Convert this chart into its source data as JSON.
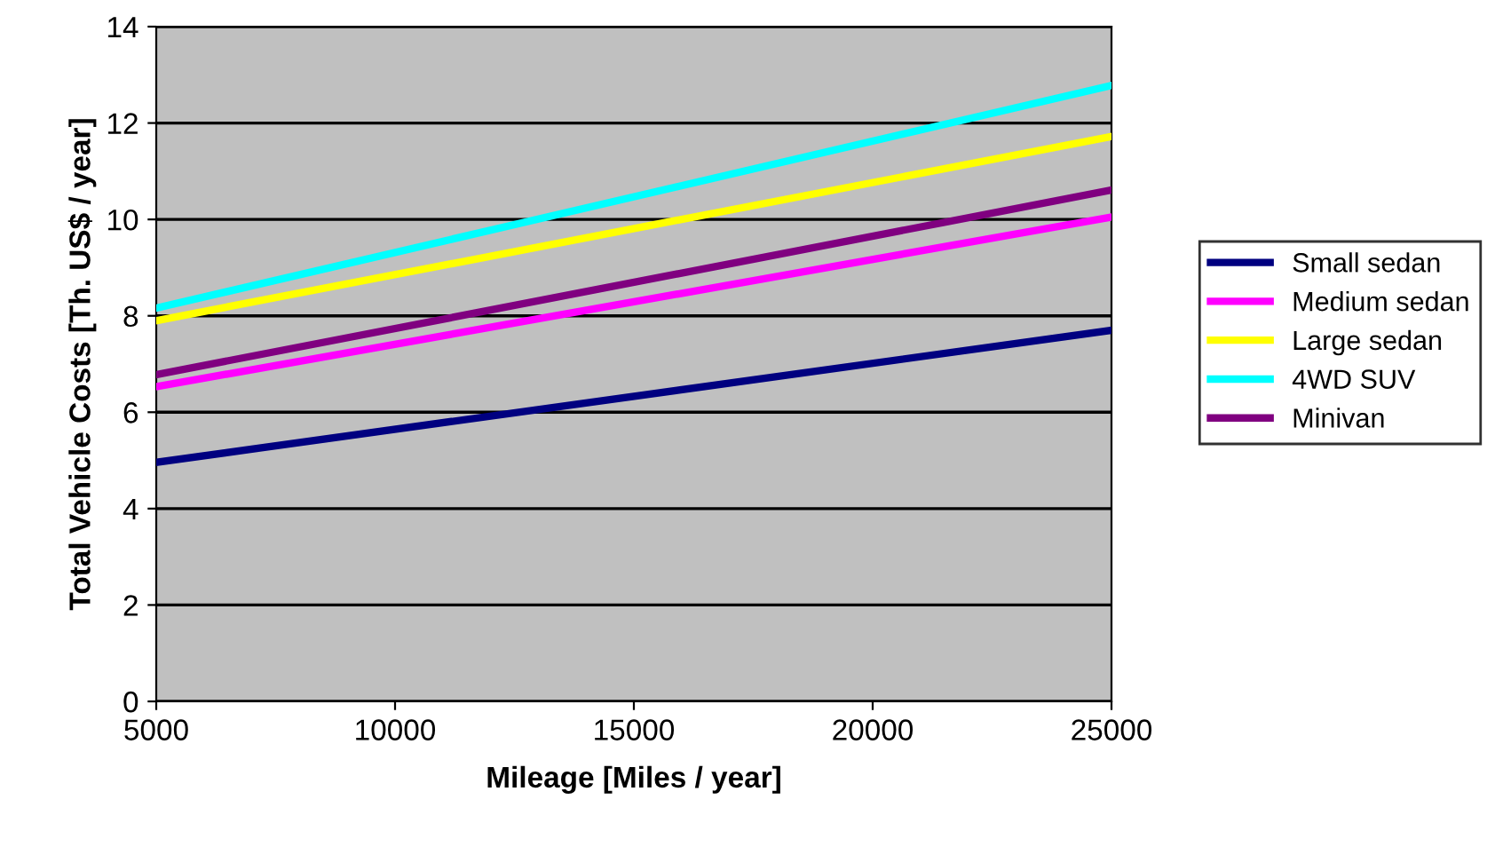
{
  "chart_data": {
    "type": "line",
    "xlabel": "Mileage [Miles / year]",
    "ylabel": "Total Vehicle Costs [Th. US$ / year]",
    "x": [
      5000,
      25000
    ],
    "series": [
      {
        "name": "Small sedan",
        "color": "#000080",
        "values": [
          4.96,
          7.7
        ]
      },
      {
        "name": "Medium sedan",
        "color": "#ff00ff",
        "values": [
          6.53,
          10.05
        ]
      },
      {
        "name": "Large sedan",
        "color": "#ffff00",
        "values": [
          7.9,
          11.72
        ]
      },
      {
        "name": "4WD SUV",
        "color": "#00ffff",
        "values": [
          8.16,
          12.78
        ]
      },
      {
        "name": "Minivan",
        "color": "#800080",
        "values": [
          6.78,
          10.61
        ]
      }
    ],
    "xlim": [
      5000,
      25000
    ],
    "xticks": [
      5000,
      10000,
      15000,
      20000,
      25000
    ],
    "ylim": [
      0,
      14
    ],
    "yticks": [
      0,
      2,
      4,
      6,
      8,
      10,
      12,
      14
    ],
    "grid": "y",
    "legend": "right",
    "marker": "none",
    "line_style": "solid"
  }
}
